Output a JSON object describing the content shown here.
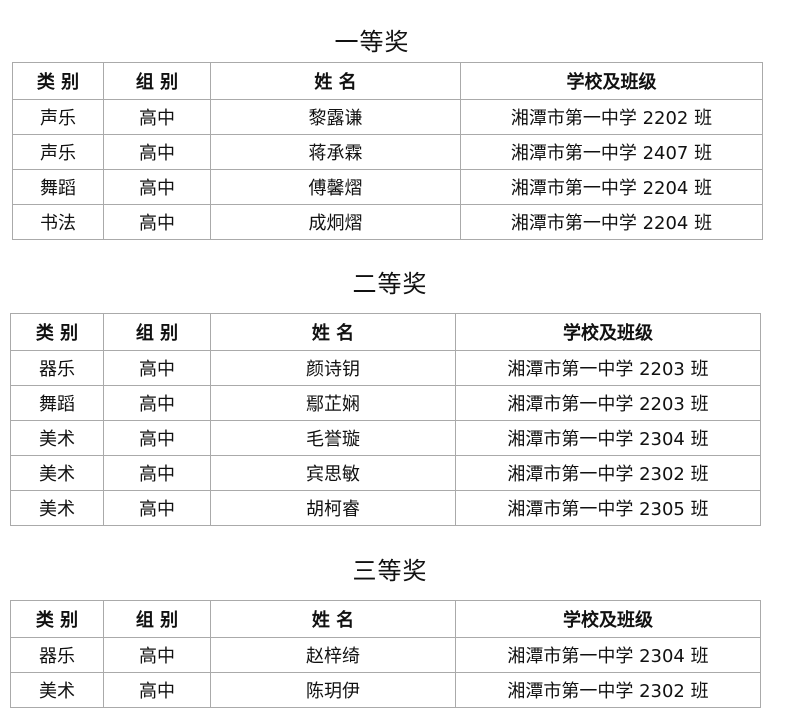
{
  "headers": [
    "类 别",
    "组 别",
    "姓 名",
    "学校及班级"
  ],
  "sections": [
    {
      "title": "一等奖",
      "rows": [
        [
          "声乐",
          "高中",
          "黎露谦",
          "湘潭市第一中学  2202 班"
        ],
        [
          "声乐",
          "高中",
          "蒋承霖",
          "湘潭市第一中学 2407 班"
        ],
        [
          "舞蹈",
          "高中",
          "傅馨熠",
          "湘潭市第一中学  2204 班"
        ],
        [
          "书法",
          "高中",
          "成炯熠",
          "湘潭市第一中学  2204 班"
        ]
      ]
    },
    {
      "title": "二等奖",
      "rows": [
        [
          "器乐",
          "高中",
          "颜诗钥",
          "湘潭市第一中学 2203 班"
        ],
        [
          "舞蹈",
          "高中",
          "鄢芷娴",
          "湘潭市第一中学 2203 班"
        ],
        [
          "美术",
          "高中",
          "毛誉璇",
          "湘潭市第一中学  2304 班"
        ],
        [
          "美术",
          "高中",
          "宾思敏",
          "湘潭市第一中学  2302 班"
        ],
        [
          "美术",
          "高中",
          "胡柯睿",
          "湘潭市第一中学  2305 班"
        ]
      ]
    },
    {
      "title": "三等奖",
      "rows": [
        [
          "器乐",
          "高中",
          "赵梓绮",
          "湘潭市第一中学  2304 班"
        ],
        [
          "美术",
          "高中",
          "陈玥伊",
          "湘潭市第一中学  2302 班"
        ]
      ]
    }
  ]
}
